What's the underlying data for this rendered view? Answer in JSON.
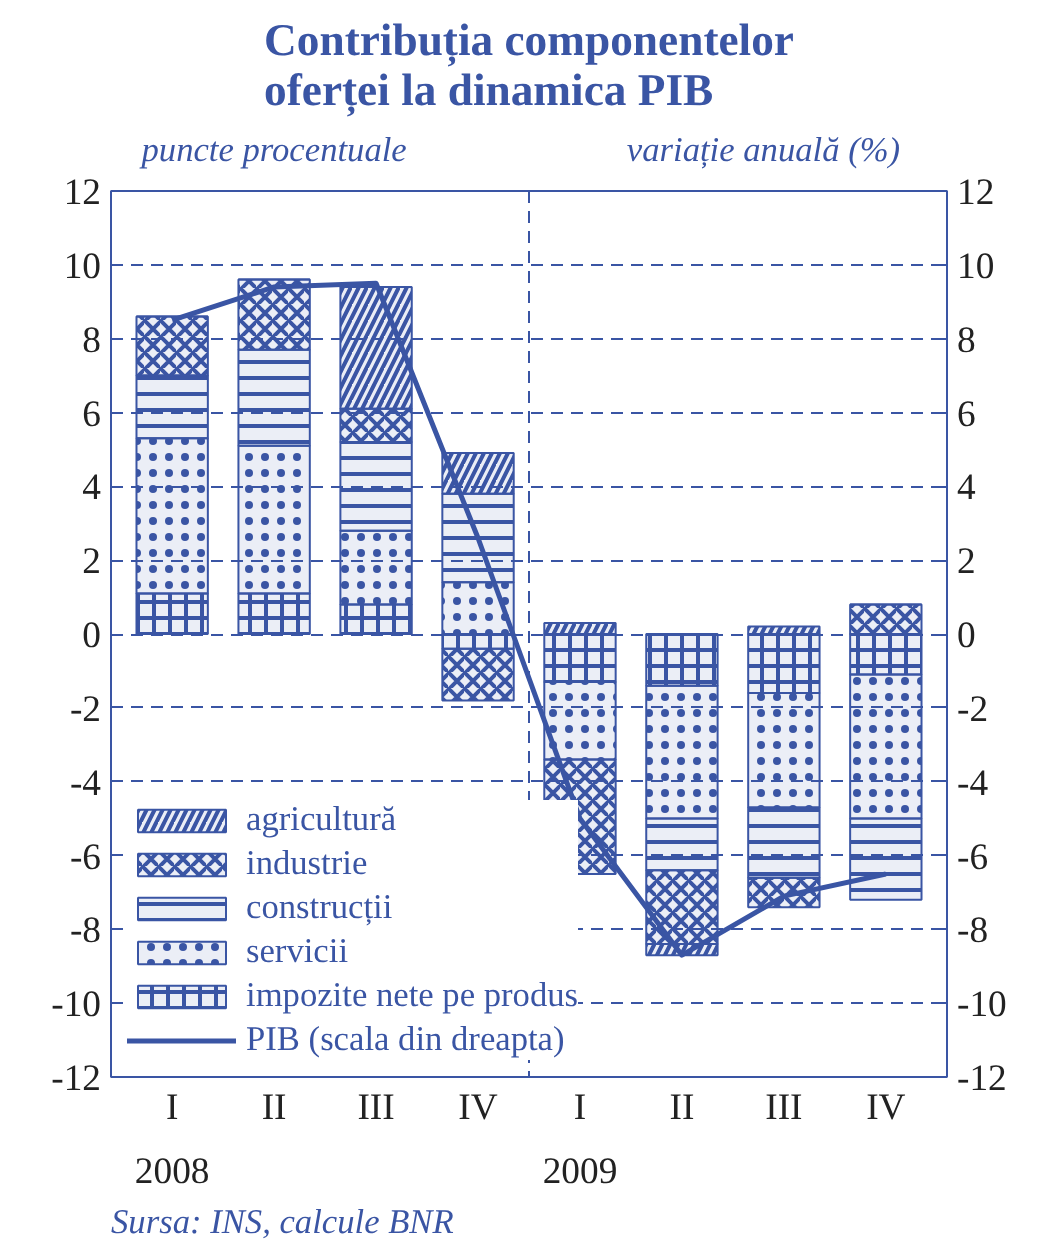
{
  "chart_data": {
    "type": "bar",
    "stacked": true,
    "title": "Contribuția componentelor\noferței la dinamica PIB",
    "ylabel": "puncte procentuale",
    "y2label": "variație anuală (%)",
    "categories": [
      "I",
      "II",
      "III",
      "IV",
      "I",
      "II",
      "III",
      "IV"
    ],
    "series": [
      {
        "name": "impozite nete pe produs",
        "color": "#3a55a4",
        "values": [
          1.1,
          1.1,
          0.8,
          -0.4,
          -1.3,
          -1.4,
          -1.6,
          -1.1
        ]
      },
      {
        "name": "servicii",
        "color": "#3a55a4",
        "values": [
          4.2,
          4.0,
          2.0,
          1.4,
          -2.1,
          -3.6,
          -3.1,
          -3.9
        ]
      },
      {
        "name": "construcții",
        "color": "#3a55a4",
        "values": [
          1.7,
          2.6,
          2.4,
          2.4,
          0,
          -1.4,
          -1.9,
          -2.2
        ]
      },
      {
        "name": "industrie",
        "color": "#3a55a4",
        "values": [
          1.6,
          1.9,
          0.9,
          -1.4,
          -3.1,
          -2.0,
          -0.8,
          0.8
        ]
      },
      {
        "name": "agricultură",
        "color": "#3a55a4",
        "values": [
          0,
          0,
          3.3,
          1.1,
          0.3,
          -0.3,
          0.2,
          0
        ]
      },
      {
        "name": "PIB (scala din dreapta)",
        "type": "line",
        "axis": "y2",
        "color": "#3a55a4",
        "values": [
          8.5,
          9.4,
          9.5,
          2.6,
          -5.0,
          -8.7,
          -7.1,
          -6.5
        ]
      }
    ],
    "ylim": [
      -12,
      12
    ],
    "yticks": [
      -12,
      -10,
      -8,
      -6,
      -4,
      -2,
      0,
      2,
      4,
      6,
      8,
      10,
      12
    ],
    "y2lim": [
      -12,
      12
    ],
    "y2ticks": [
      -12,
      -10,
      -8,
      -6,
      -4,
      -2,
      0,
      2,
      4,
      6,
      8,
      10,
      12
    ],
    "grid": "y",
    "legend": "bottom left",
    "marker": "none",
    "line_style": "solid",
    "annotations": [
      "2008",
      "2009",
      "Sursa: INS, calcule BNR"
    ]
  }
}
